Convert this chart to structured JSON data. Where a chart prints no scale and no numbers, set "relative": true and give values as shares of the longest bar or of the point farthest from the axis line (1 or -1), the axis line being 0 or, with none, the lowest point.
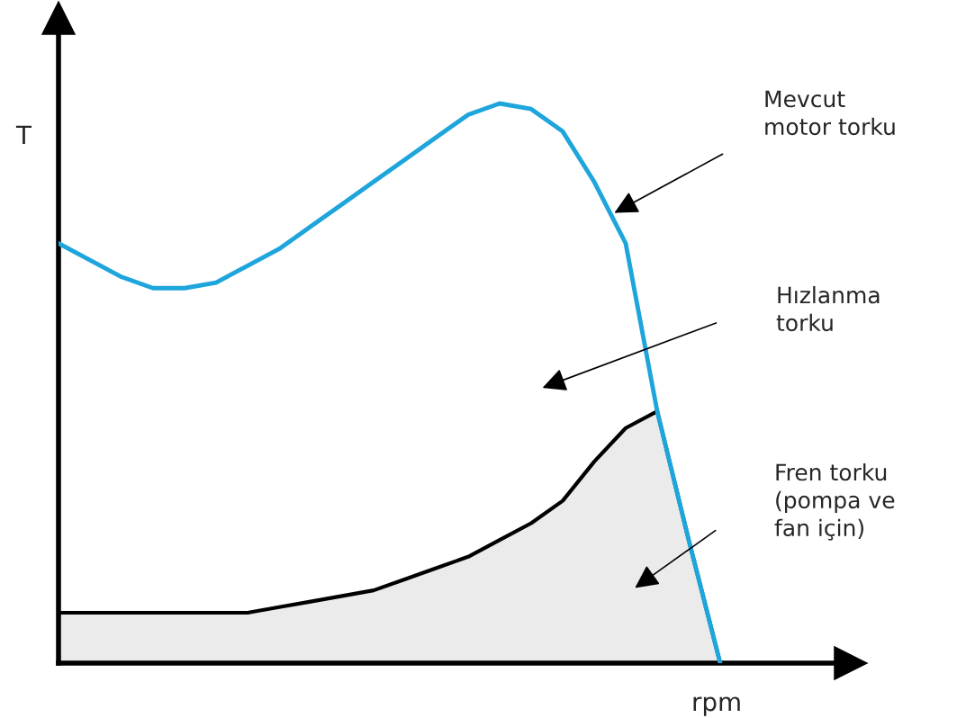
{
  "chart_data": {
    "type": "line",
    "relative": true,
    "xlabel": "rpm",
    "ylabel": "T",
    "categories": [
      null,
      null,
      null,
      null,
      null,
      null,
      null,
      null,
      null,
      null,
      null,
      null,
      null,
      null,
      null,
      null,
      null,
      null,
      null,
      null,
      null,
      null
    ],
    "series": [
      {
        "type": "area",
        "color": "#ebebeb",
        "values": [
          0.09,
          0.09,
          0.09,
          0.09,
          0.09,
          0.09,
          0.09,
          0.1,
          0.11,
          0.12,
          0.13,
          0.15,
          0.17,
          0.19,
          0.22,
          0.25,
          0.29,
          0.36,
          0.42,
          0.45,
          0.22,
          0
        ]
      },
      {
        "color": "#1ea5dc",
        "values": [
          0.75,
          0.72,
          0.69,
          0.67,
          0.67,
          0.68,
          0.71,
          0.74,
          0.78,
          0.82,
          0.86,
          0.9,
          0.94,
          0.98,
          1.0,
          0.99,
          0.95,
          0.86,
          0.75,
          0.45,
          0.22,
          0
        ]
      }
    ],
    "annotations": [
      "Mevcut\nmotor torku",
      "Hızlanma\ntorku",
      "Fren torku\n(pompa ve\nfan için)"
    ],
    "legend": false
  }
}
